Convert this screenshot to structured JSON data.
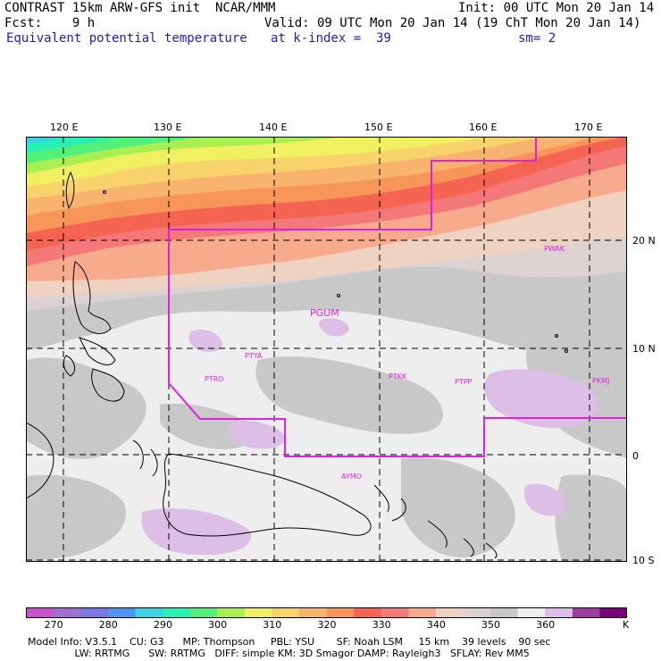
{
  "header": {
    "line1_left": "CONTRAST 15km ARW-GFS init  NCAR/MMM",
    "line1_right": "Init: 00 UTC Mon 20 Jan 14",
    "line2_left": "Fcst:    9 h",
    "line2_right": "Valid: 09 UTC Mon 20 Jan 14 (19 ChT Mon 20 Jan 14)",
    "field_name": "Equivalent potential temperature",
    "level": "at k-index =  39",
    "smoothing": "sm= 2"
  },
  "map": {
    "top_labels": [
      "120 E",
      "130 E",
      "140 E",
      "150 E",
      "160 E",
      "170 E"
    ],
    "right_labels": [
      "20 N",
      "10 N",
      "0",
      "10 S"
    ],
    "stations": [
      "PWAK",
      "PGUM",
      "PTYA",
      "PTRO",
      "PTKK",
      "PTPP",
      "PKMJ",
      "AYMO"
    ],
    "contour_units": "K",
    "levels": [
      270,
      275,
      280,
      285,
      290,
      295,
      300,
      305,
      310,
      315,
      320,
      325,
      330,
      335,
      340,
      345,
      350,
      355,
      360,
      365,
      370,
      375
    ],
    "level_labels": [
      "270",
      "280",
      "290",
      "300",
      "310",
      "320",
      "330",
      "340",
      "350",
      "360"
    ],
    "colors": [
      "#c850c8",
      "#a070d0",
      "#7878e0",
      "#5096f0",
      "#3cd2e6",
      "#28f0b4",
      "#50f07a",
      "#a8f052",
      "#f0f062",
      "#f8d26a",
      "#f8b46e",
      "#f8965a",
      "#f46450",
      "#f47878",
      "#f8aa8c",
      "#f0d2c0",
      "#dcd2d2",
      "#c8c8c8",
      "#eeeeee",
      "#dcbee6",
      "#9c3ca0",
      "#780078"
    ]
  },
  "footer": {
    "line1": "Model Info: V3.5.1    CU: G3      MP: Thompson     PBL: YSU       SF: Noah LSM     15 km    39 levels    90 sec",
    "line2": "               LW: RRTMG      SW: RRTMG   DIFF: simple KM: 3D Smagor DAMP: Rayleigh3   SFLAY: Rev MM5"
  }
}
